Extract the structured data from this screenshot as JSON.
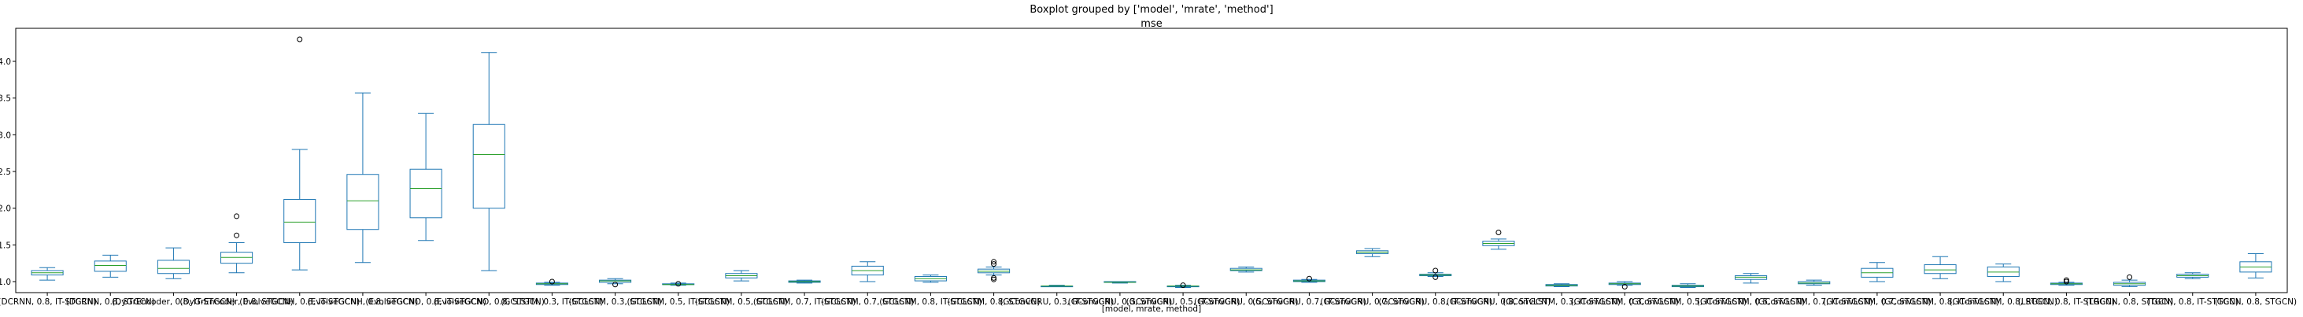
{
  "figure": {
    "suptitle": "Boxplot grouped by ['model', 'mrate', 'method']",
    "title": "mse",
    "xlabel": "[model, mrate, method]"
  },
  "colors": {
    "box": "#1f77b4",
    "median": "#2ca02c",
    "whisker": "#1f77b4",
    "flier": "#000000",
    "frame": "#000000"
  },
  "chart_data": {
    "type": "boxplot",
    "title": "mse",
    "xlabel": "[model, mrate, method]",
    "ylabel": "",
    "ylim": [
      0.85,
      4.45
    ],
    "yticks": [
      1.0,
      1.5,
      2.0,
      2.5,
      3.0,
      3.5,
      4.0
    ],
    "ytick_labels": [
      "1.0",
      "1.5",
      "2.0",
      "2.5",
      "3.0",
      "3.5",
      "4.0"
    ],
    "grid": false,
    "categories": [
      "(DCRNN, 0.8, IT-STGCN)",
      "(DCRNN, 0.8, STGCN)",
      "(DyGrEncoder, 0.8, IT-STGCN)",
      "(DyGrEncoder, 0.8, STGCN)",
      "(EvolveGCNH, 0.8, IT-STGCN)",
      "(EvolveGCNH, 0.8, STGCN)",
      "(EvolveGCNO, 0.8, IT-STGCN)",
      "(EvolveGCNO, 0.8, STGCN)",
      "(GCLSTM, 0.3, IT-STGCN)",
      "(GCLSTM, 0.3, STGCN)",
      "(GCLSTM, 0.5, IT-STGCN)",
      "(GCLSTM, 0.5, STGCN)",
      "(GCLSTM, 0.7, IT-STGCN)",
      "(GCLSTM, 0.7, STGCN)",
      "(GCLSTM, 0.8, IT-STGCN)",
      "(GCLSTM, 0.8, STGCN)",
      "(GConvGRU, 0.3, IT-STGCN)",
      "(GConvGRU, 0.3, STGCN)",
      "(GConvGRU, 0.5, IT-STGCN)",
      "(GConvGRU, 0.5, STGCN)",
      "(GConvGRU, 0.7, IT-STGCN)",
      "(GConvGRU, 0.7, STGCN)",
      "(GConvGRU, 0.8, IT-STGCN)",
      "(GConvGRU, 0.8, STGCN)",
      "(GConvLSTM, 0.3, IT-STGCN)",
      "(GConvLSTM, 0.3, STGCN)",
      "(GConvLSTM, 0.5, IT-STGCN)",
      "(GConvLSTM, 0.5, STGCN)",
      "(GConvLSTM, 0.7, IT-STGCN)",
      "(GConvLSTM, 0.7, STGCN)",
      "(GConvLSTM, 0.8, IT-STGCN)",
      "(GConvLSTM, 0.8, STGCN)",
      "(LRGCN, 0.8, IT-STGCN)",
      "(LRGCN, 0.8, STGCN)",
      "(TGCN, 0.8, IT-STGCN)",
      "(TGCN, 0.8, STGCN)"
    ],
    "boxes": [
      {
        "whislo": 1.02,
        "q1": 1.09,
        "med": 1.12,
        "q3": 1.15,
        "whishi": 1.19,
        "fliers": []
      },
      {
        "whislo": 1.06,
        "q1": 1.14,
        "med": 1.22,
        "q3": 1.28,
        "whishi": 1.36,
        "fliers": []
      },
      {
        "whislo": 1.04,
        "q1": 1.11,
        "med": 1.18,
        "q3": 1.29,
        "whishi": 1.46,
        "fliers": []
      },
      {
        "whislo": 1.12,
        "q1": 1.25,
        "med": 1.33,
        "q3": 1.4,
        "whishi": 1.53,
        "fliers": [
          1.63,
          1.89
        ]
      },
      {
        "whislo": 1.16,
        "q1": 1.53,
        "med": 1.81,
        "q3": 2.12,
        "whishi": 2.8,
        "fliers": [
          4.3
        ]
      },
      {
        "whislo": 1.26,
        "q1": 1.71,
        "med": 2.1,
        "q3": 2.46,
        "whishi": 3.57,
        "fliers": []
      },
      {
        "whislo": 1.56,
        "q1": 1.87,
        "med": 2.27,
        "q3": 2.53,
        "whishi": 3.29,
        "fliers": []
      },
      {
        "whislo": 1.15,
        "q1": 2.0,
        "med": 2.73,
        "q3": 3.14,
        "whishi": 4.12,
        "fliers": []
      },
      {
        "whislo": 0.95,
        "q1": 0.96,
        "med": 0.97,
        "q3": 0.98,
        "whishi": 0.99,
        "fliers": [
          1.0
        ]
      },
      {
        "whislo": 0.97,
        "q1": 0.99,
        "med": 1.01,
        "q3": 1.02,
        "whishi": 1.04,
        "fliers": [
          0.96
        ]
      },
      {
        "whislo": 0.95,
        "q1": 0.96,
        "med": 0.96,
        "q3": 0.97,
        "whishi": 0.98,
        "fliers": [
          0.97
        ]
      },
      {
        "whislo": 1.01,
        "q1": 1.05,
        "med": 1.08,
        "q3": 1.11,
        "whishi": 1.15,
        "fliers": []
      },
      {
        "whislo": 0.98,
        "q1": 0.99,
        "med": 1.0,
        "q3": 1.01,
        "whishi": 1.02,
        "fliers": []
      },
      {
        "whislo": 1.0,
        "q1": 1.09,
        "med": 1.15,
        "q3": 1.21,
        "whishi": 1.27,
        "fliers": []
      },
      {
        "whislo": 0.99,
        "q1": 1.01,
        "med": 1.04,
        "q3": 1.07,
        "whishi": 1.09,
        "fliers": []
      },
      {
        "whislo": 1.09,
        "q1": 1.12,
        "med": 1.14,
        "q3": 1.17,
        "whishi": 1.2,
        "fliers": [
          1.03,
          1.05,
          1.24,
          1.27
        ]
      },
      {
        "whislo": 0.94,
        "q1": 0.94,
        "med": 0.94,
        "q3": 0.94,
        "whishi": 0.95,
        "fliers": []
      },
      {
        "whislo": 0.98,
        "q1": 0.99,
        "med": 0.99,
        "q3": 1.0,
        "whishi": 1.0,
        "fliers": []
      },
      {
        "whislo": 0.92,
        "q1": 0.93,
        "med": 0.94,
        "q3": 0.94,
        "whishi": 0.95,
        "fliers": [
          0.95
        ]
      },
      {
        "whislo": 1.13,
        "q1": 1.15,
        "med": 1.16,
        "q3": 1.18,
        "whishi": 1.2,
        "fliers": []
      },
      {
        "whislo": 0.99,
        "q1": 1.0,
        "med": 1.01,
        "q3": 1.02,
        "whishi": 1.03,
        "fliers": [
          1.04
        ]
      },
      {
        "whislo": 1.34,
        "q1": 1.38,
        "med": 1.4,
        "q3": 1.42,
        "whishi": 1.45,
        "fliers": []
      },
      {
        "whislo": 1.07,
        "q1": 1.08,
        "med": 1.09,
        "q3": 1.1,
        "whishi": 1.12,
        "fliers": [
          1.06,
          1.15
        ]
      },
      {
        "whislo": 1.44,
        "q1": 1.49,
        "med": 1.52,
        "q3": 1.55,
        "whishi": 1.58,
        "fliers": [
          1.67
        ]
      },
      {
        "whislo": 0.93,
        "q1": 0.94,
        "med": 0.95,
        "q3": 0.96,
        "whishi": 0.97,
        "fliers": []
      },
      {
        "whislo": 0.95,
        "q1": 0.96,
        "med": 0.97,
        "q3": 0.98,
        "whishi": 1.0,
        "fliers": [
          0.93
        ]
      },
      {
        "whislo": 0.92,
        "q1": 0.93,
        "med": 0.94,
        "q3": 0.95,
        "whishi": 0.97,
        "fliers": []
      },
      {
        "whislo": 0.98,
        "q1": 1.03,
        "med": 1.06,
        "q3": 1.08,
        "whishi": 1.11,
        "fliers": []
      },
      {
        "whislo": 0.95,
        "q1": 0.97,
        "med": 0.98,
        "q3": 1.0,
        "whishi": 1.02,
        "fliers": []
      },
      {
        "whislo": 1.0,
        "q1": 1.06,
        "med": 1.12,
        "q3": 1.18,
        "whishi": 1.26,
        "fliers": []
      },
      {
        "whislo": 1.04,
        "q1": 1.11,
        "med": 1.16,
        "q3": 1.23,
        "whishi": 1.34,
        "fliers": []
      },
      {
        "whislo": 1.0,
        "q1": 1.07,
        "med": 1.13,
        "q3": 1.2,
        "whishi": 1.24,
        "fliers": []
      },
      {
        "whislo": 0.95,
        "q1": 0.96,
        "med": 0.97,
        "q3": 0.98,
        "whishi": 0.99,
        "fliers": [
          1.0,
          1.02
        ]
      },
      {
        "whislo": 0.93,
        "q1": 0.95,
        "med": 0.97,
        "q3": 0.99,
        "whishi": 1.02,
        "fliers": [
          1.06
        ]
      },
      {
        "whislo": 1.04,
        "q1": 1.06,
        "med": 1.08,
        "q3": 1.1,
        "whishi": 1.12,
        "fliers": []
      },
      {
        "whislo": 1.05,
        "q1": 1.13,
        "med": 1.2,
        "q3": 1.27,
        "whishi": 1.38,
        "fliers": []
      }
    ]
  }
}
